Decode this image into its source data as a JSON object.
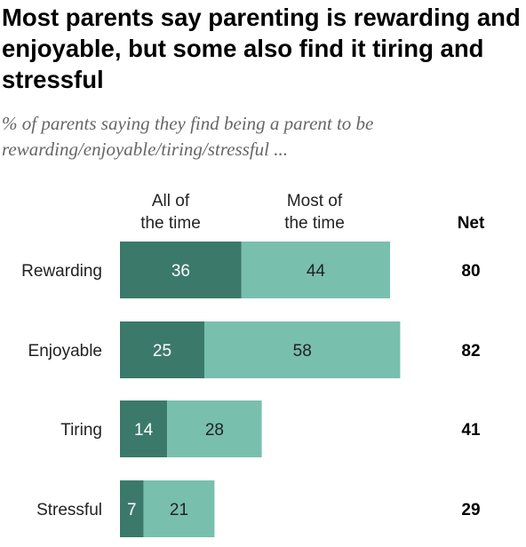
{
  "chart_data": {
    "type": "bar",
    "stacked": true,
    "orientation": "horizontal",
    "title": "Most parents say parenting is rewarding and enjoyable, but some also find it tiring and stressful",
    "subtitle": "% of parents saying they find being a parent to be rewarding/enjoyable/tiring/stressful ...",
    "categories": [
      "Rewarding",
      "Enjoyable",
      "Tiring",
      "Stressful"
    ],
    "series": [
      {
        "name": "All of the time",
        "values": [
          36,
          25,
          14,
          7
        ],
        "color": "#3b7a6a",
        "label_color": "#ffffff"
      },
      {
        "name": "Most of the time",
        "values": [
          44,
          58,
          28,
          21
        ],
        "color": "#79bfae",
        "label_color": "#222222"
      }
    ],
    "net_label": "Net",
    "net_values": [
      80,
      82,
      41,
      29
    ]
  }
}
